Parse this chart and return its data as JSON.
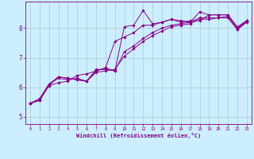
{
  "xlabel": "Windchill (Refroidissement éolien,°C)",
  "background_color": "#cceeff",
  "grid_color": "#aacccc",
  "line_color": "#880088",
  "xlim": [
    -0.5,
    23.5
  ],
  "ylim": [
    4.75,
    8.9
  ],
  "yticks": [
    5,
    6,
    7,
    8
  ],
  "xticks": [
    0,
    1,
    2,
    3,
    4,
    5,
    6,
    7,
    8,
    9,
    10,
    11,
    12,
    13,
    14,
    15,
    16,
    17,
    18,
    19,
    20,
    21,
    22,
    23
  ],
  "line1_x": [
    0,
    1,
    2,
    3,
    4,
    5,
    6,
    7,
    8,
    9,
    10,
    11,
    12,
    13,
    14,
    15,
    16,
    17,
    18,
    19,
    20,
    21,
    22,
    23
  ],
  "line1_y": [
    5.45,
    5.55,
    6.05,
    6.35,
    6.3,
    6.25,
    6.2,
    6.6,
    6.6,
    6.55,
    8.05,
    8.1,
    8.6,
    8.15,
    8.2,
    8.3,
    8.25,
    8.2,
    8.55,
    8.45,
    8.45,
    8.45,
    7.95,
    8.25
  ],
  "line2_x": [
    0,
    1,
    2,
    3,
    4,
    5,
    6,
    7,
    8,
    9,
    10,
    11,
    12,
    13,
    14,
    15,
    16,
    17,
    18,
    19,
    20,
    21,
    22,
    23
  ],
  "line2_y": [
    5.45,
    5.55,
    6.05,
    6.15,
    6.2,
    6.4,
    6.45,
    6.55,
    6.65,
    7.55,
    7.7,
    7.85,
    8.1,
    8.1,
    8.2,
    8.3,
    8.2,
    8.25,
    8.25,
    8.45,
    8.45,
    8.45,
    8.05,
    8.25
  ],
  "line3_x": [
    0,
    1,
    2,
    3,
    4,
    5,
    6,
    7,
    8,
    9,
    10,
    11,
    12,
    13,
    14,
    15,
    16,
    17,
    18,
    19,
    20,
    21,
    22,
    23
  ],
  "line3_y": [
    5.45,
    5.6,
    6.1,
    6.35,
    6.3,
    6.25,
    6.2,
    6.55,
    6.65,
    6.55,
    7.2,
    7.4,
    7.65,
    7.85,
    8.0,
    8.1,
    8.15,
    8.2,
    8.35,
    8.35,
    8.35,
    8.4,
    8.0,
    8.25
  ],
  "line4_x": [
    0,
    1,
    2,
    3,
    4,
    5,
    6,
    7,
    8,
    9,
    10,
    11,
    12,
    13,
    14,
    15,
    16,
    17,
    18,
    19,
    20,
    21,
    22,
    23
  ],
  "line4_y": [
    5.45,
    5.6,
    6.1,
    6.3,
    6.25,
    6.3,
    6.2,
    6.5,
    6.55,
    6.6,
    7.05,
    7.3,
    7.55,
    7.75,
    7.9,
    8.05,
    8.1,
    8.15,
    8.3,
    8.3,
    8.35,
    8.35,
    7.95,
    8.2
  ]
}
